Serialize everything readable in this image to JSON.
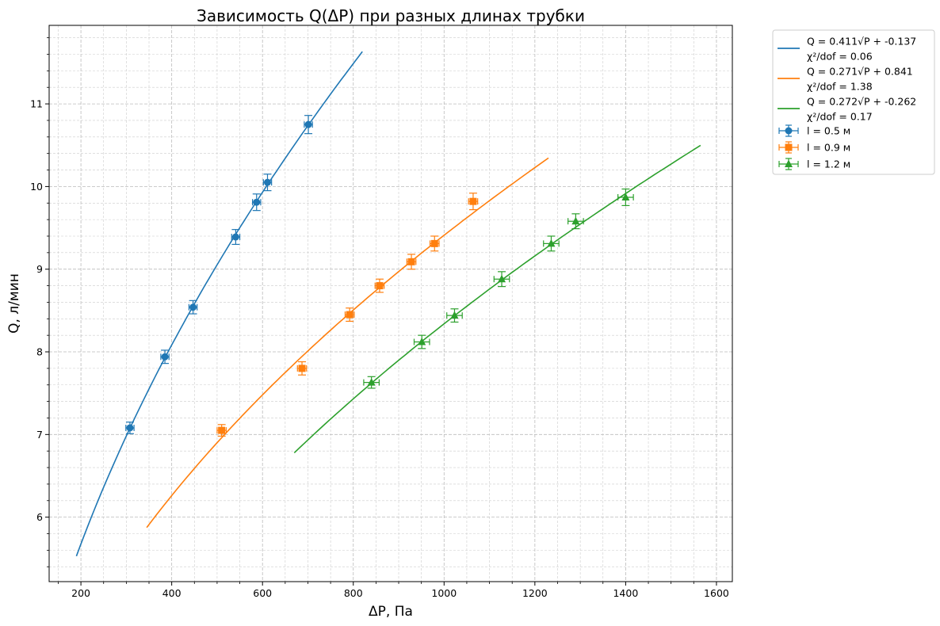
{
  "chart_data": {
    "type": "scatter",
    "title": "Зависимость Q(ΔP) при разных длинах трубки",
    "xlabel": "ΔP, Па",
    "ylabel": "Q, л/мин",
    "xlim": [
      130,
      1635
    ],
    "ylim": [
      5.22,
      11.95
    ],
    "x_ticks": [
      200,
      400,
      600,
      800,
      1000,
      1200,
      1400,
      1600
    ],
    "y_ticks": [
      6,
      7,
      8,
      9,
      10,
      11
    ],
    "grid": true,
    "minor_grid": true,
    "legend_position": "outside-top-right",
    "fits": [
      {
        "label_line1": "Q = 0.411√P + -0.137",
        "label_line2": "χ²/dof = 0.06",
        "a": 0.411,
        "b": -0.137,
        "x_range": [
          190,
          820
        ],
        "color": "#1f77b4"
      },
      {
        "label_line1": "Q = 0.271√P + 0.841",
        "label_line2": "χ²/dof = 1.38",
        "a": 0.271,
        "b": 0.841,
        "x_range": [
          345,
          1230
        ],
        "color": "#ff7f0e"
      },
      {
        "label_line1": "Q = 0.272√P + -0.262",
        "label_line2": "χ²/dof = 0.17",
        "a": 0.272,
        "b": -0.262,
        "x_range": [
          670,
          1565
        ],
        "color": "#2ca02c"
      }
    ],
    "series": [
      {
        "name": "l = 0.5 м",
        "marker": "circle",
        "color": "#1f77b4",
        "x_err": 9,
        "points": [
          {
            "x": 308,
            "y": 7.08,
            "y_err": 0.07
          },
          {
            "x": 385,
            "y": 7.94,
            "y_err": 0.08
          },
          {
            "x": 447,
            "y": 8.54,
            "y_err": 0.08
          },
          {
            "x": 541,
            "y": 9.39,
            "y_err": 0.09
          },
          {
            "x": 587,
            "y": 9.81,
            "y_err": 0.1
          },
          {
            "x": 611,
            "y": 10.05,
            "y_err": 0.1
          },
          {
            "x": 701,
            "y": 10.75,
            "y_err": 0.11
          }
        ]
      },
      {
        "name": "l = 0.9 м",
        "marker": "square",
        "color": "#ff7f0e",
        "x_err": 10,
        "points": [
          {
            "x": 510,
            "y": 7.05,
            "y_err": 0.07
          },
          {
            "x": 687,
            "y": 7.8,
            "y_err": 0.08
          },
          {
            "x": 792,
            "y": 8.45,
            "y_err": 0.08
          },
          {
            "x": 858,
            "y": 8.8,
            "y_err": 0.08
          },
          {
            "x": 928,
            "y": 9.09,
            "y_err": 0.09
          },
          {
            "x": 979,
            "y": 9.31,
            "y_err": 0.09
          },
          {
            "x": 1064,
            "y": 9.82,
            "y_err": 0.1
          }
        ]
      },
      {
        "name": "l = 1.2 м",
        "marker": "triangle",
        "color": "#2ca02c",
        "x_err": 17,
        "points": [
          {
            "x": 840,
            "y": 7.63,
            "y_err": 0.07
          },
          {
            "x": 951,
            "y": 8.12,
            "y_err": 0.08
          },
          {
            "x": 1023,
            "y": 8.44,
            "y_err": 0.08
          },
          {
            "x": 1127,
            "y": 8.88,
            "y_err": 0.09
          },
          {
            "x": 1236,
            "y": 9.31,
            "y_err": 0.09
          },
          {
            "x": 1290,
            "y": 9.58,
            "y_err": 0.09
          },
          {
            "x": 1400,
            "y": 9.87,
            "y_err": 0.1
          }
        ]
      }
    ]
  }
}
